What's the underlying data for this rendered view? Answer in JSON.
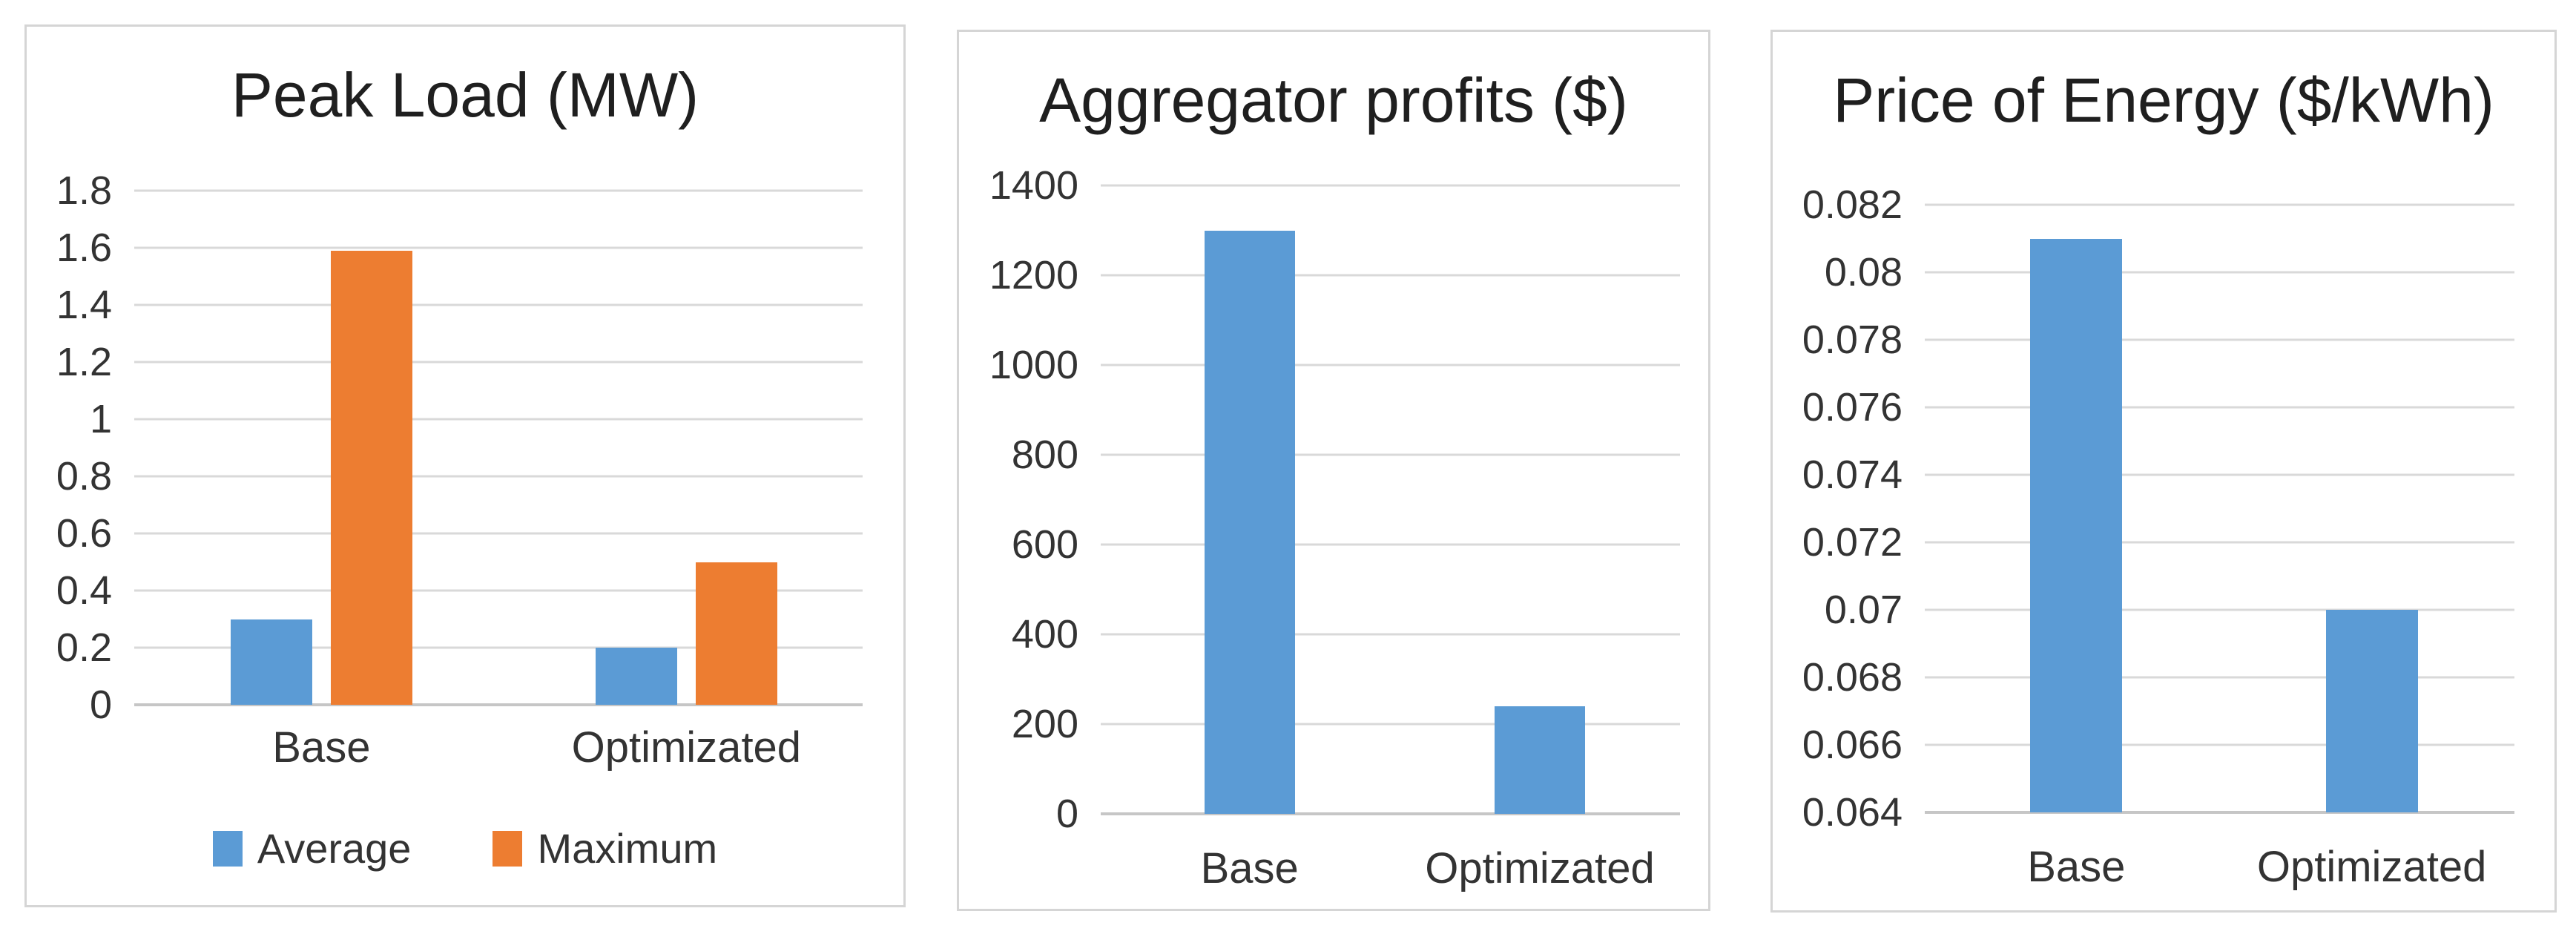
{
  "page": {
    "background": "#ffffff"
  },
  "colors": {
    "series_blue": "#5B9BD5",
    "series_orange": "#ED7D31",
    "gridline": "#D9D9D9",
    "baseline": "#C6C6C6",
    "text": "#333333",
    "title_text": "#1F1F1F",
    "panel_border": "#D5D5D5"
  },
  "chart_data": [
    {
      "type": "bar",
      "title": "Peak Load (MW)",
      "categories": [
        "Base",
        "Optimizated"
      ],
      "series": [
        {
          "name": "Average",
          "color_key": "series_blue",
          "values": [
            0.3,
            0.2
          ]
        },
        {
          "name": "Maximum",
          "color_key": "series_orange",
          "values": [
            1.59,
            0.5
          ]
        }
      ],
      "xlabel": "",
      "ylabel": "",
      "ylim": [
        0,
        1.8
      ],
      "ytick_step": 0.2,
      "ytick_labels": [
        "0",
        "0.2",
        "0.4",
        "0.6",
        "0.8",
        "1",
        "1.2",
        "1.4",
        "1.6",
        "1.8"
      ],
      "grid": true,
      "legend_position": "bottom"
    },
    {
      "type": "bar",
      "title": "Aggregator profits ($)",
      "categories": [
        "Base",
        "Optimizated"
      ],
      "series": [
        {
          "name": "",
          "color_key": "series_blue",
          "values": [
            1300,
            240
          ]
        }
      ],
      "xlabel": "",
      "ylabel": "",
      "ylim": [
        0,
        1400
      ],
      "ytick_step": 200,
      "ytick_labels": [
        "0",
        "200",
        "400",
        "600",
        "800",
        "1000",
        "1200",
        "1400"
      ],
      "grid": true,
      "legend_position": "none"
    },
    {
      "type": "bar",
      "title": "Price of Energy ($/kWh)",
      "categories": [
        "Base",
        "Optimizated"
      ],
      "series": [
        {
          "name": "",
          "color_key": "series_blue",
          "values": [
            0.081,
            0.07
          ]
        }
      ],
      "xlabel": "",
      "ylabel": "",
      "ylim": [
        0.064,
        0.082
      ],
      "ytick_step": 0.002,
      "ytick_labels": [
        "0.064",
        "0.066",
        "0.068",
        "0.07",
        "0.072",
        "0.074",
        "0.076",
        "0.078",
        "0.08",
        "0.082"
      ],
      "grid": true,
      "legend_position": "none"
    }
  ]
}
